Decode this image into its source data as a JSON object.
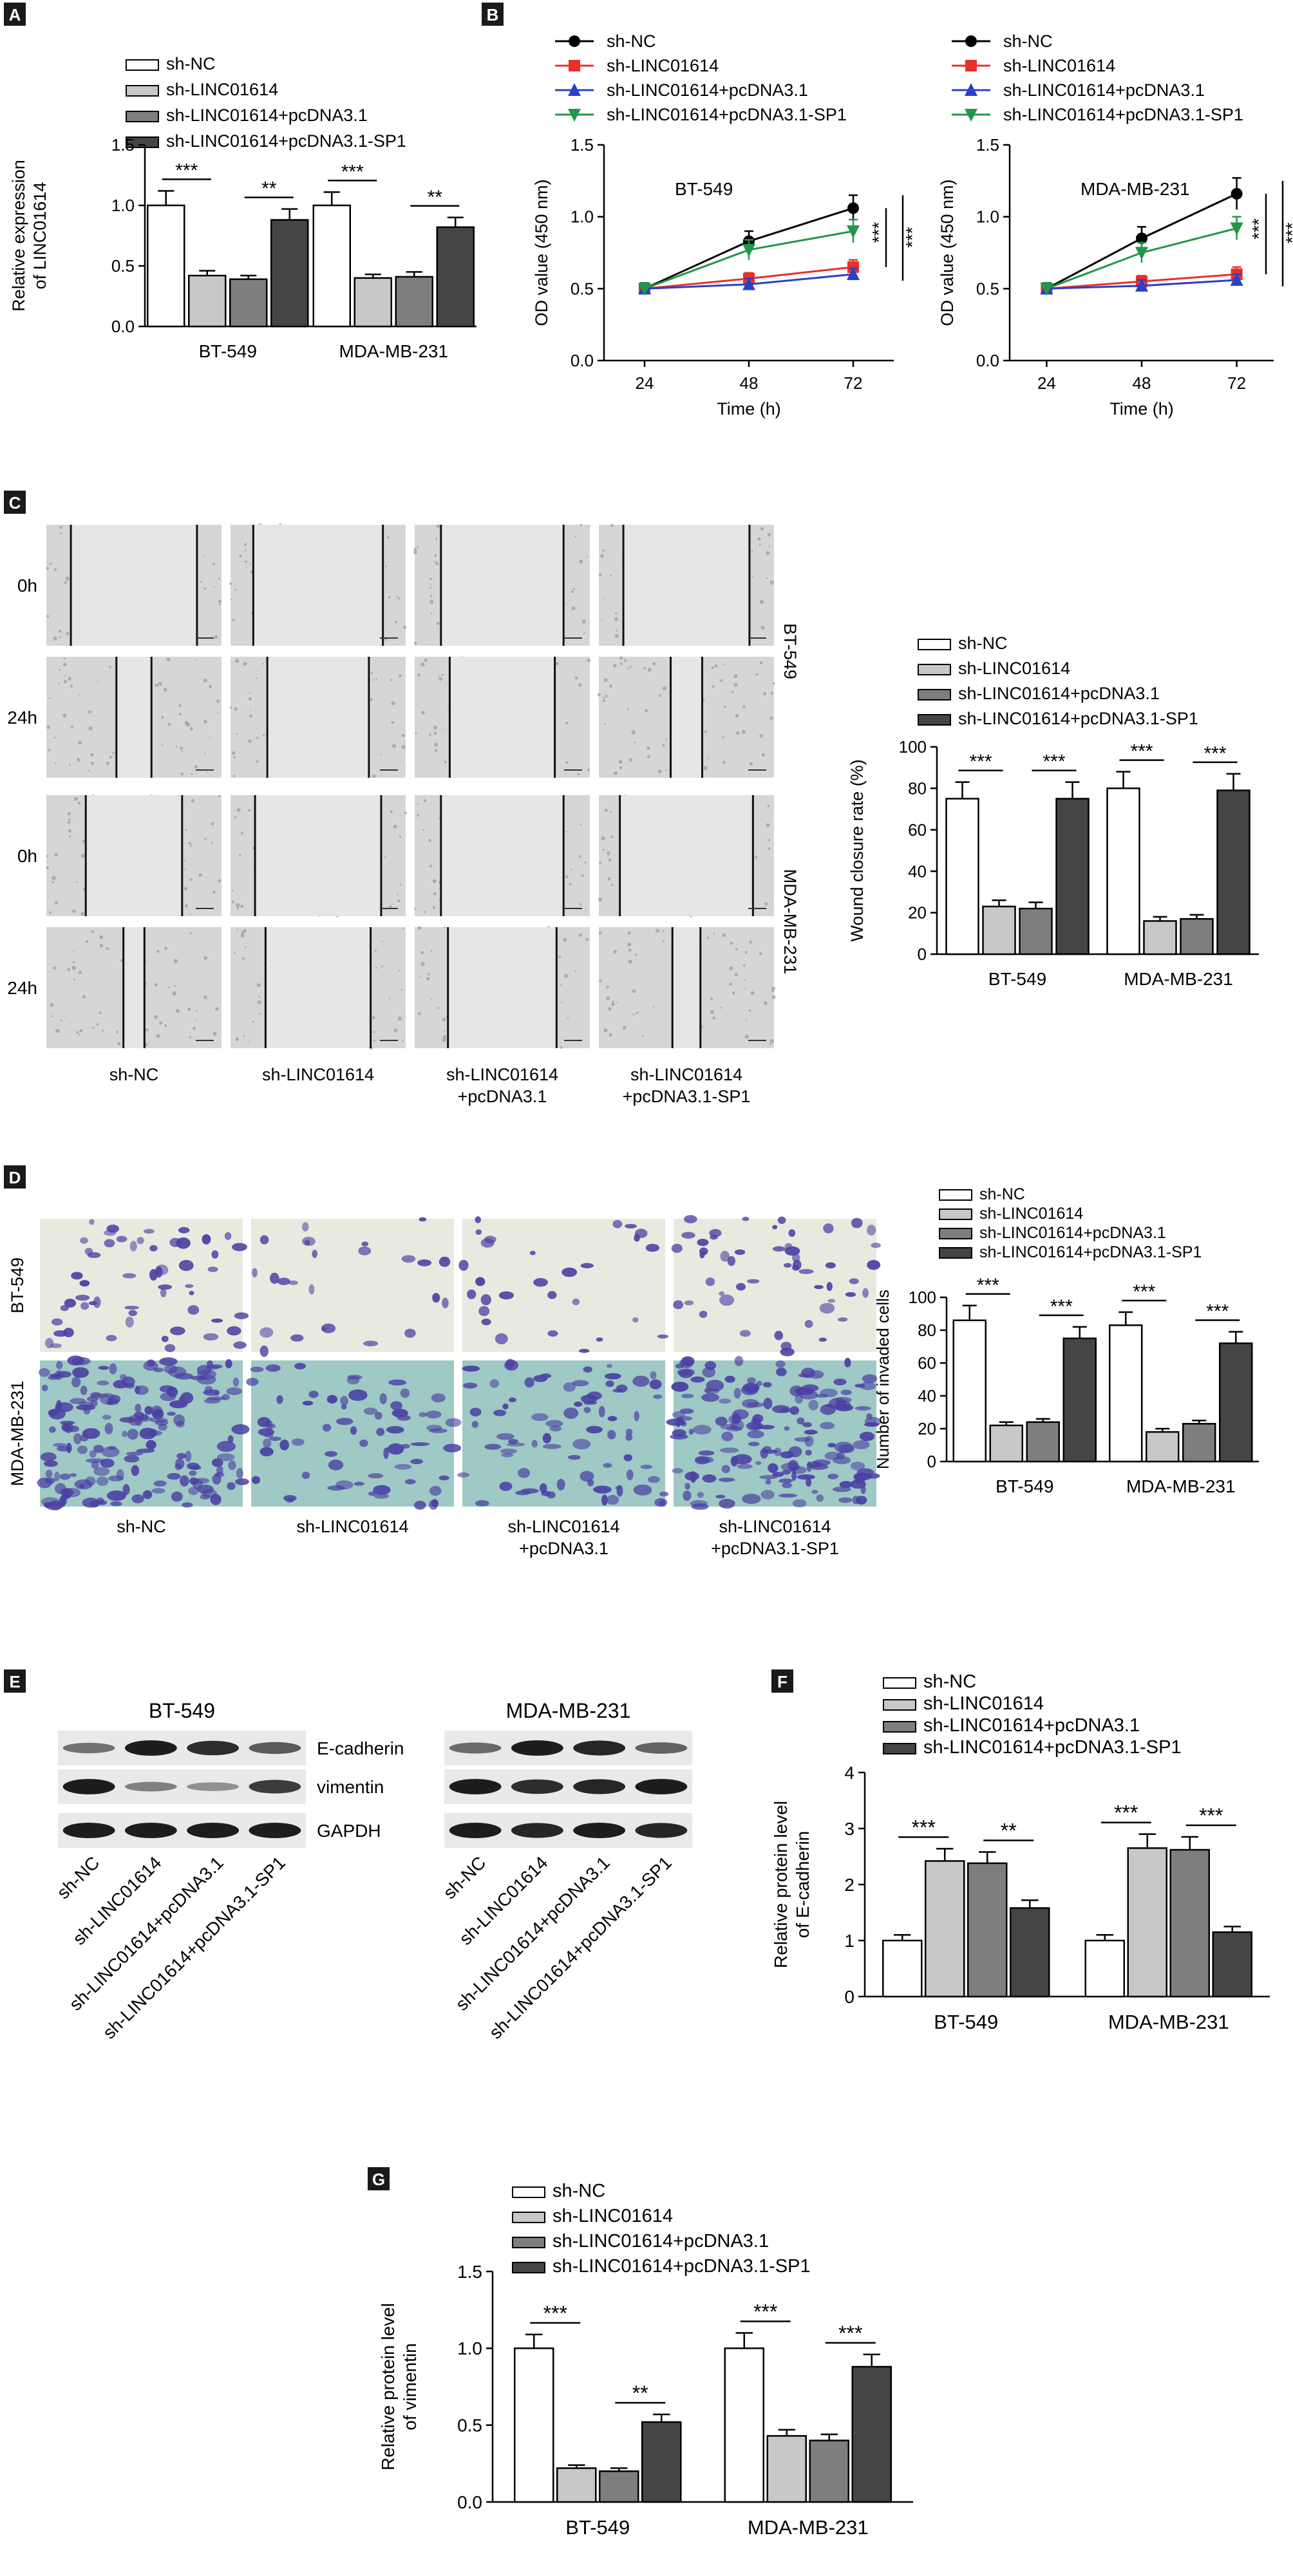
{
  "colors": {
    "sh_nc": "#ffffff",
    "sh_linc": "#c8c8c8",
    "sh_linc_pcdna": "#7e7e7e",
    "sh_linc_sp1": "#454545",
    "line_nc": "#000000",
    "line_linc": "#e8302a",
    "line_pcdna": "#2940c6",
    "line_sp1": "#22964a",
    "wound_bg": "#d6d6d6",
    "transwell_bt": "#e8eadf",
    "transwell_mda": "#9fc9c4",
    "cell_stain": "#4b3fa3",
    "blot_bg": "#e9e9e9",
    "band": "#1d1d1d"
  },
  "groups": [
    "sh-NC",
    "sh-LINC01614",
    "sh-LINC01614+pcDNA3.1",
    "sh-LINC01614+pcDNA3.1-SP1"
  ],
  "cell_lines": [
    "BT-549",
    "MDA-MB-231"
  ],
  "panels": {
    "A": {
      "label": "A",
      "chart_data": {
        "type": "bar",
        "categories": [
          "BT-549",
          "MDA-MB-231"
        ],
        "ylabel": "Relative expression of LINC01614",
        "ylabel_lines": [
          "Relative expression",
          "of LINC01614"
        ],
        "ylim": [
          0,
          1.5
        ],
        "yticks": [
          0,
          0.5,
          1.0,
          1.5
        ],
        "ytick_labels": [
          "0.0",
          "0.5",
          "1.0",
          "1.5"
        ],
        "series": [
          {
            "name": "sh-NC",
            "values": [
              1.0,
              1.0
            ],
            "errors": [
              0.12,
              0.11
            ]
          },
          {
            "name": "sh-LINC01614",
            "values": [
              0.42,
              0.4
            ],
            "errors": [
              0.04,
              0.03
            ]
          },
          {
            "name": "sh-LINC01614+pcDNA3.1",
            "values": [
              0.39,
              0.41
            ],
            "errors": [
              0.03,
              0.04
            ]
          },
          {
            "name": "sh-LINC01614+pcDNA3.1-SP1",
            "values": [
              0.88,
              0.82
            ],
            "errors": [
              0.09,
              0.08
            ]
          }
        ],
        "significance": [
          {
            "category": 0,
            "from": 0,
            "to": 1,
            "label": "***"
          },
          {
            "category": 0,
            "from": 2,
            "to": 3,
            "label": "**"
          },
          {
            "category": 1,
            "from": 0,
            "to": 1,
            "label": "***"
          },
          {
            "category": 1,
            "from": 2,
            "to": 3,
            "label": "**"
          }
        ],
        "legend": "top-left"
      }
    },
    "B": {
      "label": "B",
      "chart_data": [
        {
          "type": "line",
          "title": "BT-549",
          "x": [
            24,
            48,
            72
          ],
          "xlabel": "Time (h)",
          "ylabel": "OD value (450 nm)",
          "ylim": [
            0,
            1.5
          ],
          "yticks": [
            0,
            0.5,
            1.0,
            1.5
          ],
          "ytick_labels": [
            "0.0",
            "0.5",
            "1.0",
            "1.5"
          ],
          "series": [
            {
              "name": "sh-NC",
              "values": [
                0.5,
                0.83,
                1.06
              ],
              "errors": [
                0.04,
                0.07,
                0.09
              ],
              "marker": "circle"
            },
            {
              "name": "sh-LINC01614",
              "values": [
                0.5,
                0.57,
                0.65
              ],
              "errors": [
                0.03,
                0.04,
                0.05
              ],
              "marker": "square"
            },
            {
              "name": "sh-LINC01614+pcDNA3.1",
              "values": [
                0.5,
                0.53,
                0.6
              ],
              "errors": [
                0.03,
                0.04,
                0.04
              ],
              "marker": "triangle-up"
            },
            {
              "name": "sh-LINC01614+pcDNA3.1-SP1",
              "values": [
                0.5,
                0.77,
                0.9
              ],
              "errors": [
                0.04,
                0.07,
                0.08
              ],
              "marker": "triangle-down"
            }
          ],
          "significance": [
            {
              "label": "***"
            },
            {
              "label": "***"
            }
          ],
          "legend": "top"
        },
        {
          "type": "line",
          "title": "MDA-MB-231",
          "x": [
            24,
            48,
            72
          ],
          "xlabel": "Time (h)",
          "ylabel": "OD value (450 nm)",
          "ylim": [
            0,
            1.5
          ],
          "yticks": [
            0,
            0.5,
            1.0,
            1.5
          ],
          "ytick_labels": [
            "0.0",
            "0.5",
            "1.0",
            "1.5"
          ],
          "series": [
            {
              "name": "sh-NC",
              "values": [
                0.5,
                0.85,
                1.16
              ],
              "errors": [
                0.04,
                0.08,
                0.11
              ],
              "marker": "circle"
            },
            {
              "name": "sh-LINC01614",
              "values": [
                0.5,
                0.55,
                0.6
              ],
              "errors": [
                0.03,
                0.04,
                0.05
              ],
              "marker": "square"
            },
            {
              "name": "sh-LINC01614+pcDNA3.1",
              "values": [
                0.5,
                0.52,
                0.56
              ],
              "errors": [
                0.03,
                0.04,
                0.04
              ],
              "marker": "triangle-up"
            },
            {
              "name": "sh-LINC01614+pcDNA3.1-SP1",
              "values": [
                0.5,
                0.75,
                0.92
              ],
              "errors": [
                0.04,
                0.07,
                0.08
              ],
              "marker": "triangle-down"
            }
          ],
          "significance": [
            {
              "label": "***"
            },
            {
              "label": "***"
            }
          ],
          "legend": "top"
        }
      ]
    },
    "C": {
      "label": "C",
      "row_labels": [
        "0h",
        "24h",
        "0h",
        "24h"
      ],
      "side_labels": [
        "BT-549",
        "MDA-MB-231"
      ],
      "col_labels": [
        [
          "sh-NC"
        ],
        [
          "sh-LINC01614"
        ],
        [
          "sh-LINC01614",
          "+pcDNA3.1"
        ],
        [
          "sh-LINC01614",
          "+pcDNA3.1-SP1"
        ]
      ],
      "wound_widths": [
        [
          0.72,
          0.74,
          0.7,
          0.72
        ],
        [
          0.2,
          0.58,
          0.6,
          0.18
        ],
        [
          0.55,
          0.72,
          0.7,
          0.76
        ],
        [
          0.12,
          0.6,
          0.62,
          0.16
        ]
      ],
      "chart_data": {
        "type": "bar",
        "categories": [
          "BT-549",
          "MDA-MB-231"
        ],
        "ylabel": "Wound closure rate (%)",
        "ylim": [
          0,
          100
        ],
        "yticks": [
          0,
          20,
          40,
          60,
          80,
          100
        ],
        "ytick_labels": [
          "0",
          "20",
          "40",
          "60",
          "80",
          "100"
        ],
        "series": [
          {
            "name": "sh-NC",
            "values": [
              75,
              80
            ],
            "errors": [
              8,
              8
            ]
          },
          {
            "name": "sh-LINC01614",
            "values": [
              23,
              16
            ],
            "errors": [
              3,
              2
            ]
          },
          {
            "name": "sh-LINC01614+pcDNA3.1",
            "values": [
              22,
              17
            ],
            "errors": [
              3,
              2
            ]
          },
          {
            "name": "sh-LINC01614+pcDNA3.1-SP1",
            "values": [
              75,
              79
            ],
            "errors": [
              8,
              8
            ]
          }
        ],
        "significance": [
          {
            "category": 0,
            "from": 0,
            "to": 1,
            "label": "***"
          },
          {
            "category": 0,
            "from": 2,
            "to": 3,
            "label": "***"
          },
          {
            "category": 1,
            "from": 0,
            "to": 1,
            "label": "***"
          },
          {
            "category": 1,
            "from": 2,
            "to": 3,
            "label": "***"
          }
        ],
        "legend": "top-left"
      }
    },
    "D": {
      "label": "D",
      "side_labels": [
        "BT-549",
        "MDA-MB-231"
      ],
      "col_labels": [
        [
          "sh-NC"
        ],
        [
          "sh-LINC01614"
        ],
        [
          "sh-LINC01614",
          "+pcDNA3.1"
        ],
        [
          "sh-LINC01614",
          "+pcDNA3.1-SP1"
        ]
      ],
      "chart_data": {
        "type": "bar",
        "categories": [
          "BT-549",
          "MDA-MB-231"
        ],
        "ylabel": "Number of invaded cells",
        "ylim": [
          0,
          100
        ],
        "yticks": [
          0,
          20,
          40,
          60,
          80,
          100
        ],
        "ytick_labels": [
          "0",
          "20",
          "40",
          "60",
          "80",
          "100"
        ],
        "series": [
          {
            "name": "sh-NC",
            "values": [
              86,
              83
            ],
            "errors": [
              9,
              8
            ]
          },
          {
            "name": "sh-LINC01614",
            "values": [
              22,
              18
            ],
            "errors": [
              2,
              2
            ]
          },
          {
            "name": "sh-LINC01614+pcDNA3.1",
            "values": [
              24,
              23
            ],
            "errors": [
              2,
              2
            ]
          },
          {
            "name": "sh-LINC01614+pcDNA3.1-SP1",
            "values": [
              75,
              72
            ],
            "errors": [
              7,
              7
            ]
          }
        ],
        "significance": [
          {
            "category": 0,
            "from": 0,
            "to": 1,
            "label": "***"
          },
          {
            "category": 0,
            "from": 2,
            "to": 3,
            "label": "***"
          },
          {
            "category": 1,
            "from": 0,
            "to": 1,
            "label": "***"
          },
          {
            "category": 1,
            "from": 2,
            "to": 3,
            "label": "***"
          }
        ],
        "legend": "top-left"
      }
    },
    "E": {
      "label": "E",
      "titles": [
        "BT-549",
        "MDA-MB-231"
      ],
      "band_labels": [
        "E-cadherin",
        "vimentin",
        "GAPDH"
      ],
      "lane_labels": [
        "sh-NC",
        "sh-LINC01614",
        "sh-LINC01614+pcDNA3.1",
        "sh-LINC01614+pcDNA3.1-SP1"
      ],
      "band_intensity": {
        "BT-549": [
          [
            0.45,
            1.0,
            0.9,
            0.6
          ],
          [
            1.0,
            0.35,
            0.25,
            0.8
          ],
          [
            1.0,
            1.0,
            1.0,
            1.0
          ]
        ],
        "MDA-MB-231": [
          [
            0.5,
            1.0,
            0.95,
            0.55
          ],
          [
            1.0,
            0.9,
            0.95,
            1.0
          ],
          [
            1.0,
            0.95,
            1.0,
            0.95
          ]
        ]
      }
    },
    "F": {
      "label": "F",
      "chart_data": {
        "type": "bar",
        "categories": [
          "BT-549",
          "MDA-MB-231"
        ],
        "ylabel": "Relative protein level of E-cadherin",
        "ylabel_lines": [
          "Relative protein level",
          "of E-cadherin"
        ],
        "ylim": [
          0,
          4
        ],
        "yticks": [
          0,
          1,
          2,
          3,
          4
        ],
        "ytick_labels": [
          "0",
          "1",
          "2",
          "3",
          "4"
        ],
        "series": [
          {
            "name": "sh-NC",
            "values": [
              1.0,
              1.0
            ],
            "errors": [
              0.1,
              0.1
            ]
          },
          {
            "name": "sh-LINC01614",
            "values": [
              2.42,
              2.65
            ],
            "errors": [
              0.22,
              0.25
            ]
          },
          {
            "name": "sh-LINC01614+pcDNA3.1",
            "values": [
              2.38,
              2.62
            ],
            "errors": [
              0.2,
              0.23
            ]
          },
          {
            "name": "sh-LINC01614+pcDNA3.1-SP1",
            "values": [
              1.58,
              1.15
            ],
            "errors": [
              0.14,
              0.1
            ]
          }
        ],
        "significance": [
          {
            "category": 0,
            "from": 0,
            "to": 1,
            "label": "***"
          },
          {
            "category": 0,
            "from": 2,
            "to": 3,
            "label": "**"
          },
          {
            "category": 1,
            "from": 0,
            "to": 1,
            "label": "***"
          },
          {
            "category": 1,
            "from": 2,
            "to": 3,
            "label": "***"
          }
        ],
        "legend": "top-left"
      }
    },
    "G": {
      "label": "G",
      "chart_data": {
        "type": "bar",
        "categories": [
          "BT-549",
          "MDA-MB-231"
        ],
        "ylabel": "Relative protein level of vimentin",
        "ylabel_lines": [
          "Relative protein level",
          "of vimentin"
        ],
        "ylim": [
          0,
          1.5
        ],
        "yticks": [
          0,
          0.5,
          1.0,
          1.5
        ],
        "ytick_labels": [
          "0.0",
          "0.5",
          "1.0",
          "1.5"
        ],
        "series": [
          {
            "name": "sh-NC",
            "values": [
              1.0,
              1.0
            ],
            "errors": [
              0.09,
              0.1
            ]
          },
          {
            "name": "sh-LINC01614",
            "values": [
              0.22,
              0.43
            ],
            "errors": [
              0.02,
              0.04
            ]
          },
          {
            "name": "sh-LINC01614+pcDNA3.1",
            "values": [
              0.2,
              0.4
            ],
            "errors": [
              0.02,
              0.04
            ]
          },
          {
            "name": "sh-LINC01614+pcDNA3.1-SP1",
            "values": [
              0.52,
              0.88
            ],
            "errors": [
              0.05,
              0.08
            ]
          }
        ],
        "significance": [
          {
            "category": 0,
            "from": 0,
            "to": 1,
            "label": "***"
          },
          {
            "category": 0,
            "from": 2,
            "to": 3,
            "label": "**"
          },
          {
            "category": 1,
            "from": 0,
            "to": 1,
            "label": "***"
          },
          {
            "category": 1,
            "from": 2,
            "to": 3,
            "label": "***"
          }
        ],
        "legend": "top-left"
      }
    }
  }
}
